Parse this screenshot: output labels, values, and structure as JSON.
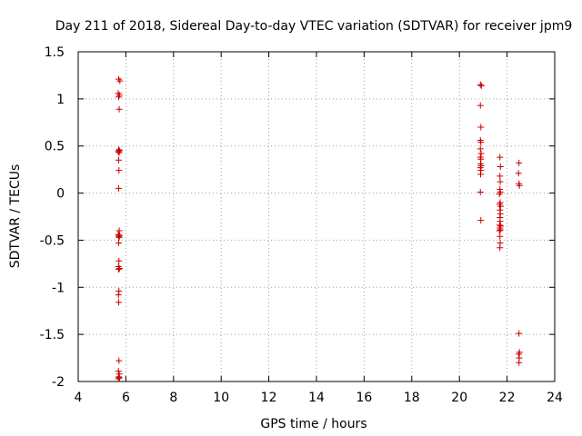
{
  "chart_data": {
    "type": "scatter",
    "title": "Day 211 of 2018, Sidereal Day-to-day VTEC variation (SDTVAR) for receiver jpm9",
    "xlabel": "GPS time / hours",
    "ylabel": "SDTVAR / TECUs",
    "xlim": [
      4,
      24
    ],
    "ylim": [
      -2,
      1.5
    ],
    "xticks": [
      4,
      6,
      8,
      10,
      12,
      14,
      16,
      18,
      20,
      22,
      24
    ],
    "yticks": [
      -2,
      -1.5,
      -1,
      -0.5,
      0,
      0.5,
      1,
      1.5
    ],
    "xtick_labels": [
      "4",
      "6",
      "8",
      "10",
      "12",
      "14",
      "16",
      "18",
      "20",
      "22",
      "24"
    ],
    "ytick_labels": [
      "-2",
      "-1.5",
      "-1",
      "-0.5",
      "0",
      "0.5",
      "1",
      "1.5"
    ],
    "grid": true,
    "legend": "none",
    "marker": "+",
    "series": [
      {
        "name": "SDTVAR",
        "color": "#cc0000",
        "points": [
          [
            5.7,
            1.21
          ],
          [
            5.75,
            1.19
          ],
          [
            5.68,
            1.06
          ],
          [
            5.73,
            1.04
          ],
          [
            5.7,
            1.02
          ],
          [
            5.72,
            0.89
          ],
          [
            5.7,
            0.46
          ],
          [
            5.74,
            0.45
          ],
          [
            5.68,
            0.44
          ],
          [
            5.72,
            0.43
          ],
          [
            5.7,
            0.35
          ],
          [
            5.71,
            0.24
          ],
          [
            5.7,
            0.05
          ],
          [
            5.72,
            -0.4
          ],
          [
            5.68,
            -0.44
          ],
          [
            5.74,
            -0.45
          ],
          [
            5.7,
            -0.46
          ],
          [
            5.72,
            -0.47
          ],
          [
            5.7,
            -0.53
          ],
          [
            5.71,
            -0.72
          ],
          [
            5.69,
            -0.78
          ],
          [
            5.73,
            -0.8
          ],
          [
            5.7,
            -0.81
          ],
          [
            5.71,
            -1.04
          ],
          [
            5.69,
            -1.08
          ],
          [
            5.7,
            -1.16
          ],
          [
            5.71,
            -1.78
          ],
          [
            5.69,
            -1.89
          ],
          [
            5.72,
            -1.92
          ],
          [
            5.7,
            -1.95
          ],
          [
            5.73,
            -1.96
          ],
          [
            5.68,
            -1.97
          ],
          [
            20.88,
            1.15
          ],
          [
            20.92,
            1.14
          ],
          [
            20.88,
            0.93
          ],
          [
            20.9,
            0.7
          ],
          [
            20.88,
            0.56
          ],
          [
            20.9,
            0.54
          ],
          [
            20.88,
            0.47
          ],
          [
            20.91,
            0.42
          ],
          [
            20.88,
            0.38
          ],
          [
            20.9,
            0.36
          ],
          [
            20.89,
            0.31
          ],
          [
            20.91,
            0.29
          ],
          [
            20.88,
            0.27
          ],
          [
            20.9,
            0.24
          ],
          [
            20.89,
            0.2
          ],
          [
            20.88,
            0.01
          ],
          [
            20.9,
            -0.29
          ],
          [
            21.7,
            0.38
          ],
          [
            21.72,
            0.28
          ],
          [
            21.7,
            0.18
          ],
          [
            21.71,
            0.12
          ],
          [
            21.7,
            0.04
          ],
          [
            21.72,
            0.01
          ],
          [
            21.68,
            -0.01
          ],
          [
            21.71,
            -0.1
          ],
          [
            21.69,
            -0.12
          ],
          [
            21.73,
            -0.14
          ],
          [
            21.7,
            -0.18
          ],
          [
            21.72,
            -0.22
          ],
          [
            21.7,
            -0.26
          ],
          [
            21.71,
            -0.3
          ],
          [
            21.69,
            -0.34
          ],
          [
            21.73,
            -0.35
          ],
          [
            21.7,
            -0.37
          ],
          [
            21.72,
            -0.39
          ],
          [
            21.68,
            -0.4
          ],
          [
            21.7,
            -0.46
          ],
          [
            21.71,
            -0.53
          ],
          [
            21.7,
            -0.58
          ],
          [
            22.5,
            0.32
          ],
          [
            22.48,
            0.21
          ],
          [
            22.5,
            0.1
          ],
          [
            22.52,
            0.08
          ],
          [
            22.5,
            -1.49
          ],
          [
            22.52,
            -1.69
          ],
          [
            22.49,
            -1.71
          ],
          [
            22.51,
            -1.75
          ],
          [
            22.5,
            -1.8
          ]
        ]
      }
    ]
  }
}
